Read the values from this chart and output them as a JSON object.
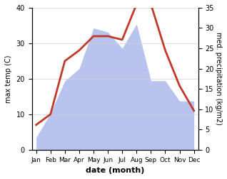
{
  "months": [
    "Jan",
    "Feb",
    "Mar",
    "Apr",
    "May",
    "Jun",
    "Jul",
    "Aug",
    "Sep",
    "Oct",
    "Nov",
    "Dec"
  ],
  "temperature": [
    7,
    10,
    25,
    28,
    32,
    32,
    31,
    41,
    41,
    28,
    18,
    11
  ],
  "precipitation": [
    3,
    9,
    17,
    20,
    30,
    29,
    25,
    31,
    17,
    17,
    12,
    12
  ],
  "temp_color": "#c0392b",
  "precip_color_fill": "#b8c4ee",
  "ylabel_left": "max temp (C)",
  "ylabel_right": "med. precipitation (kg/m2)",
  "xlabel": "date (month)",
  "ylim_left": [
    0,
    40
  ],
  "ylim_right": [
    0,
    35
  ],
  "yticks_left": [
    0,
    10,
    20,
    30,
    40
  ],
  "yticks_right": [
    0,
    5,
    10,
    15,
    20,
    25,
    30,
    35
  ],
  "temp_linewidth": 2.0,
  "background_color": "#ffffff"
}
